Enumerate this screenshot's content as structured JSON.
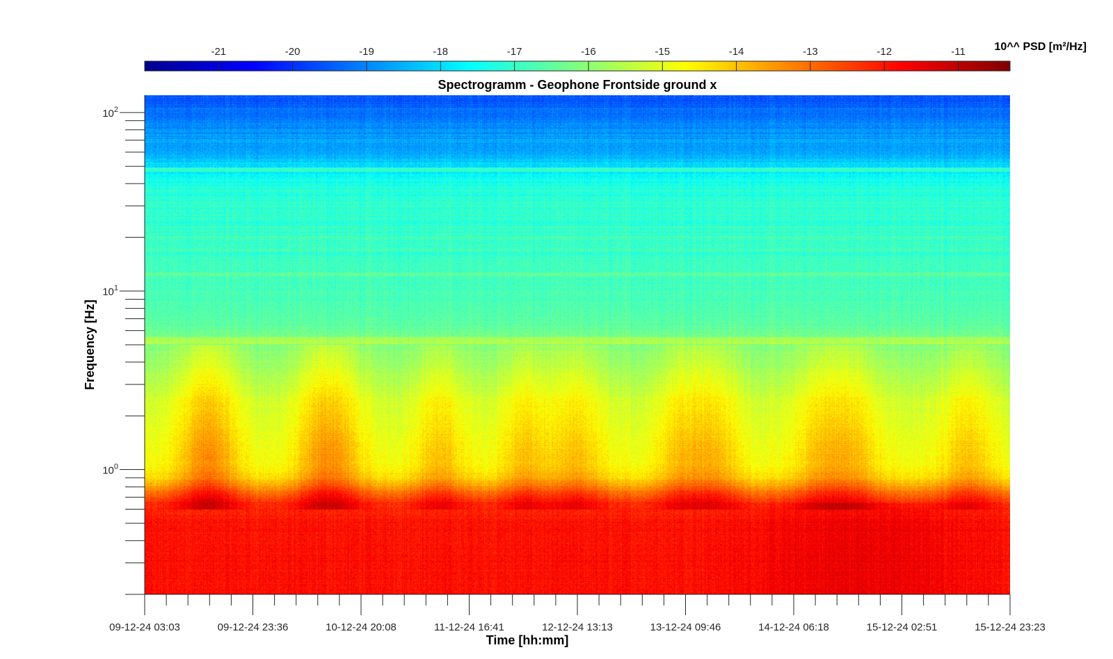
{
  "chart_data": {
    "type": "heatmap",
    "title": "Spectrogramm - Geophone Frontside ground x",
    "xlabel": "Time [hh:mm]",
    "ylabel": "Frequency [Hz]",
    "x_ticks": [
      "09-12-24 03:03",
      "09-12-24 23:36",
      "10-12-24 20:08",
      "11-12-24 16:41",
      "12-12-24 13:13",
      "13-12-24 09:46",
      "14-12-24 06:18",
      "15-12-24 02:51",
      "15-12-24 23:23"
    ],
    "y_scale": "log",
    "ylim": [
      0.2,
      125
    ],
    "y_ticks": [
      {
        "value": 1,
        "base": "10",
        "exp": "0"
      },
      {
        "value": 10,
        "base": "10",
        "exp": "1"
      },
      {
        "value": 100,
        "base": "10",
        "exp": "2"
      }
    ],
    "colorbar": {
      "label": "10^^ PSD [m²/Hz]",
      "colormap": "jet",
      "range": [
        -22,
        -10.3
      ],
      "ticks": [
        "-21",
        "-20",
        "-19",
        "-18",
        "-17",
        "-16",
        "-15",
        "-14",
        "-13",
        "-12",
        "-11"
      ],
      "placement": "top"
    },
    "psd_profile": {
      "freq_hz": [
        0.2,
        0.3,
        0.5,
        0.65,
        0.75,
        0.9,
        1.1,
        1.5,
        2.5,
        4,
        5.2,
        7,
        10,
        15,
        20,
        30,
        40,
        48,
        60,
        80,
        100,
        125
      ],
      "log10_psd": [
        -11.9,
        -11.9,
        -11.95,
        -12.3,
        -13.2,
        -14.4,
        -14.8,
        -15.0,
        -15.3,
        -15.9,
        -16.2,
        -16.6,
        -16.8,
        -16.9,
        -17.0,
        -17.1,
        -17.3,
        -17.8,
        -18.6,
        -18.9,
        -19.2,
        -19.6
      ]
    }
  }
}
